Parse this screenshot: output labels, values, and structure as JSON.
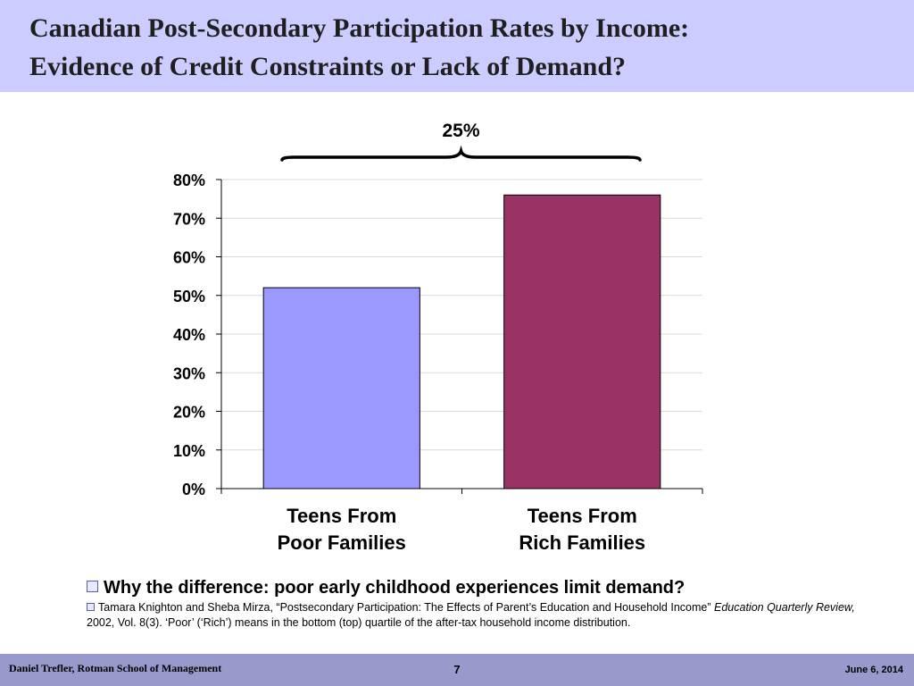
{
  "slide": {
    "title_line1": "Canadian Post-Secondary Participation Rates by Income:",
    "title_line2": "Evidence of Credit Constraints or Lack of Demand?"
  },
  "bullets": {
    "main": "Why the difference: poor early childhood experiences limit demand?",
    "ref_pre": "Tamara Knighton and Sheba Mirza, “Postsecondary Participation: The Effects of Parent’s Education and Household Income”",
    "ref_journal": "Education Quarterly Review,",
    "ref_post": "2002, Vol. 8(3).  ‘Poor’  (‘Rich’) means in the bottom (top) quartile of the after-tax household income distribution."
  },
  "footer": {
    "author": "Daniel Trefler, Rotman School of Management",
    "page": "7",
    "date": "June 6, 2014"
  },
  "chart_data": {
    "type": "bar",
    "categories": [
      [
        "Teens From",
        "Poor Families"
      ],
      [
        "Teens From",
        "Rich Families"
      ]
    ],
    "values": [
      0.52,
      0.76
    ],
    "colors": [
      "#9999ff",
      "#993366"
    ],
    "ylim": [
      0,
      0.8
    ],
    "yticks": [
      0,
      0.1,
      0.2,
      0.3,
      0.4,
      0.5,
      0.6,
      0.7,
      0.8
    ],
    "ytick_labels": [
      "0%",
      "10%",
      "20%",
      "30%",
      "40%",
      "50%",
      "60%",
      "70%",
      "80%"
    ],
    "gridlines": true,
    "annotation": "25%"
  }
}
